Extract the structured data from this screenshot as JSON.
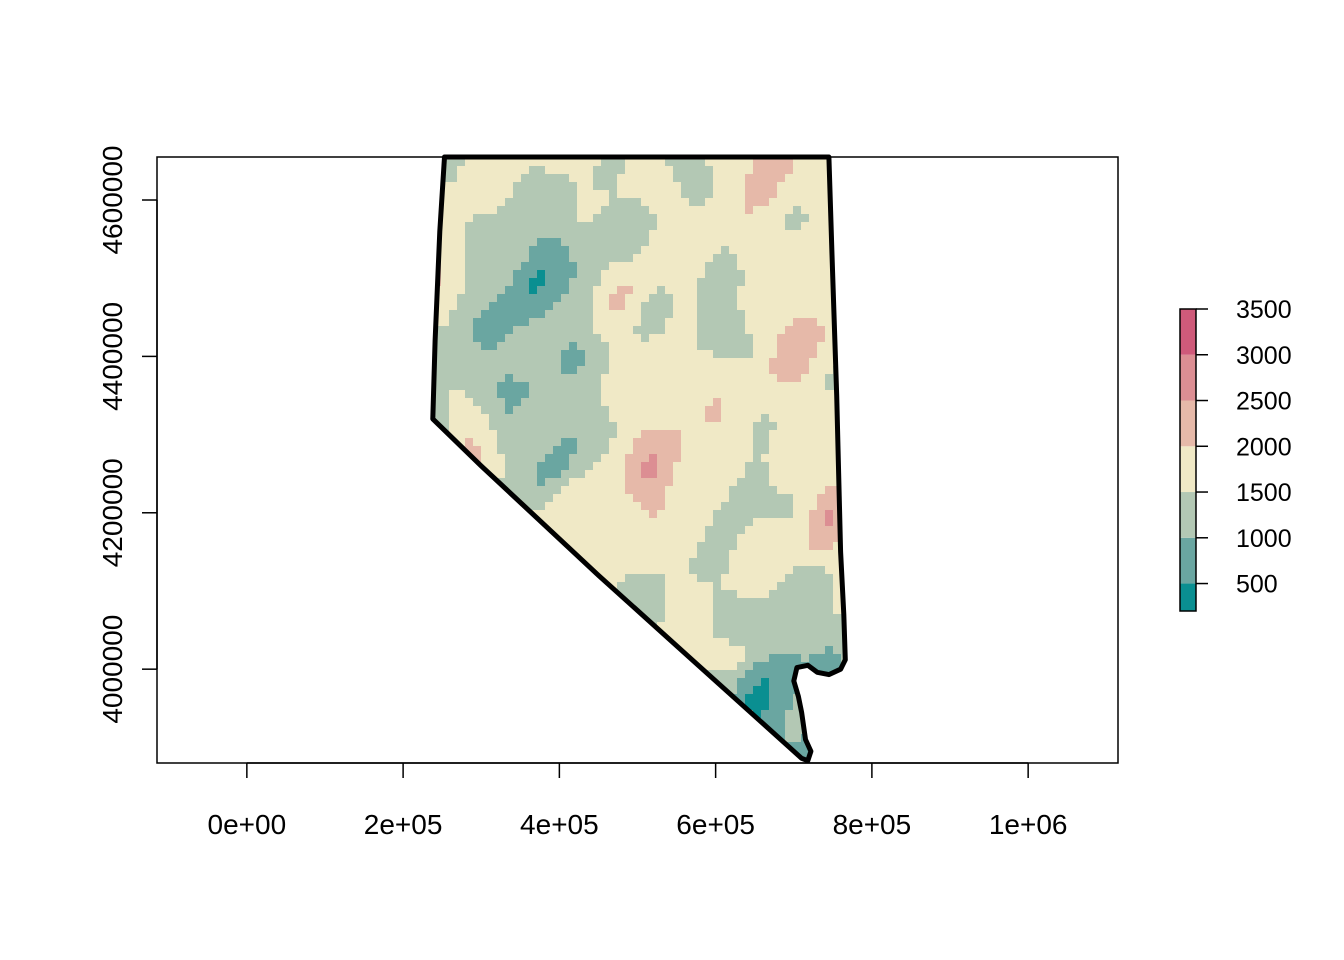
{
  "chart_data": {
    "type": "raster_map",
    "title": "",
    "xlabel": "",
    "ylabel": "",
    "xlim": [
      -115000,
      1115000
    ],
    "ylim": [
      3880000,
      4655000
    ],
    "x_ticks": [
      {
        "value": 0,
        "label": "0e+00"
      },
      {
        "value": 200000,
        "label": "2e+05"
      },
      {
        "value": 400000,
        "label": "4e+05"
      },
      {
        "value": 600000,
        "label": "6e+05"
      },
      {
        "value": 800000,
        "label": "8e+05"
      },
      {
        "value": 1000000,
        "label": "1e+06"
      }
    ],
    "y_ticks": [
      {
        "value": 4000000,
        "label": "4000000"
      },
      {
        "value": 4200000,
        "label": "4200000"
      },
      {
        "value": 4400000,
        "label": "4400000"
      },
      {
        "value": 4600000,
        "label": "4600000"
      }
    ],
    "legend": {
      "placement": "right",
      "breaks": [
        200,
        500,
        1000,
        1500,
        2000,
        2500,
        3000,
        3500
      ],
      "colors": [
        "#0a8f91",
        "#6aa6a1",
        "#b3c8b4",
        "#f0e9c6",
        "#e6b9a9",
        "#dc8e93",
        "#cf5a7a"
      ],
      "labels": [
        {
          "value": 500,
          "label": "500"
        },
        {
          "value": 1000,
          "label": "1000"
        },
        {
          "value": 1500,
          "label": "1500"
        },
        {
          "value": 2000,
          "label": "2000"
        },
        {
          "value": 2500,
          "label": "2500"
        },
        {
          "value": 3000,
          "label": "3000"
        },
        {
          "value": 3500,
          "label": "3500"
        }
      ]
    },
    "boundary": [
      [
        253000,
        4655000
      ],
      [
        745000,
        4655000
      ],
      [
        749000,
        4530000
      ],
      [
        755000,
        4350000
      ],
      [
        760000,
        4150000
      ],
      [
        764000,
        4070000
      ],
      [
        766000,
        4012000
      ],
      [
        760000,
        4000000
      ],
      [
        745000,
        3993000
      ],
      [
        730000,
        3996000
      ],
      [
        718000,
        4005000
      ],
      [
        704000,
        4002000
      ],
      [
        700000,
        3985000
      ],
      [
        706000,
        3965000
      ],
      [
        710000,
        3945000
      ],
      [
        715000,
        3910000
      ],
      [
        722000,
        3895000
      ],
      [
        718000,
        3883000
      ],
      [
        710000,
        3886000
      ],
      [
        572000,
        4010000
      ],
      [
        450000,
        4120000
      ],
      [
        300000,
        4260000
      ],
      [
        238000,
        4320000
      ],
      [
        241000,
        4420000
      ],
      [
        247000,
        4560000
      ],
      [
        253000,
        4655000
      ]
    ]
  }
}
